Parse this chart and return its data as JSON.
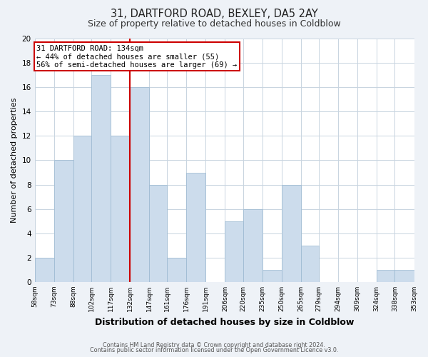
{
  "title_line1": "31, DARTFORD ROAD, BEXLEY, DA5 2AY",
  "title_line2": "Size of property relative to detached houses in Coldblow",
  "xlabel": "Distribution of detached houses by size in Coldblow",
  "ylabel": "Number of detached properties",
  "bin_edges": [
    58,
    73,
    88,
    102,
    117,
    132,
    147,
    161,
    176,
    191,
    206,
    220,
    235,
    250,
    265,
    279,
    294,
    309,
    324,
    338,
    353
  ],
  "bin_labels": [
    "58sqm",
    "73sqm",
    "88sqm",
    "102sqm",
    "117sqm",
    "132sqm",
    "147sqm",
    "161sqm",
    "176sqm",
    "191sqm",
    "206sqm",
    "220sqm",
    "235sqm",
    "250sqm",
    "265sqm",
    "279sqm",
    "294sqm",
    "309sqm",
    "324sqm",
    "338sqm",
    "353sqm"
  ],
  "counts": [
    2,
    10,
    12,
    17,
    12,
    16,
    8,
    2,
    9,
    0,
    5,
    6,
    1,
    8,
    3,
    0,
    0,
    0,
    1,
    1
  ],
  "bar_color": "#ccdcec",
  "bar_edge_color": "#9ab8d0",
  "reference_line_x": 132,
  "reference_line_color": "#cc0000",
  "annotation_line1": "31 DARTFORD ROAD: 134sqm",
  "annotation_line2": "← 44% of detached houses are smaller (55)",
  "annotation_line3": "56% of semi-detached houses are larger (69) →",
  "ylim": [
    0,
    20
  ],
  "yticks": [
    0,
    2,
    4,
    6,
    8,
    10,
    12,
    14,
    16,
    18,
    20
  ],
  "footer_line1": "Contains HM Land Registry data © Crown copyright and database right 2024.",
  "footer_line2": "Contains public sector information licensed under the Open Government Licence v3.0.",
  "bg_color": "#eef2f7",
  "plot_bg_color": "#ffffff",
  "grid_color": "#c8d4e0",
  "title_fontsize": 10.5,
  "subtitle_fontsize": 9,
  "xlabel_fontsize": 9,
  "ylabel_fontsize": 8
}
